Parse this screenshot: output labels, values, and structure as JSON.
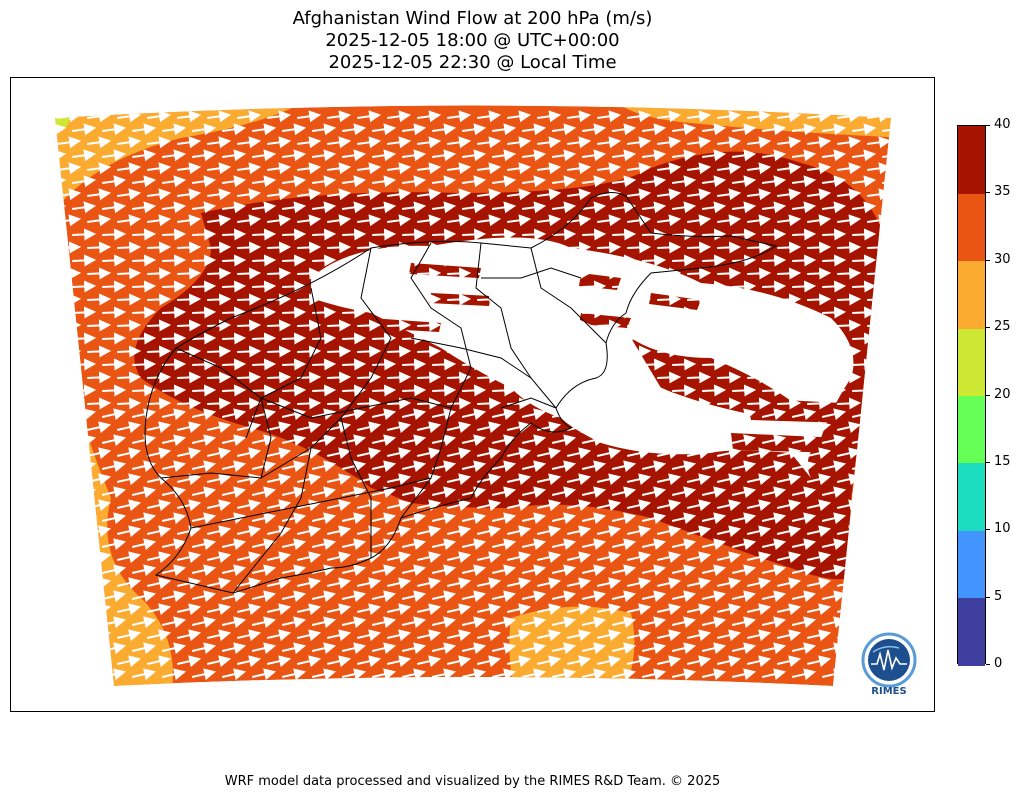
{
  "title": {
    "line1": "Afghanistan Wind Flow at 200 hPa (m/s)",
    "line2": "2025-12-05 18:00 @ UTC+00:00",
    "line3": "2025-12-05 22:30 @ Local Time"
  },
  "colorbar": {
    "ticks": [
      "0",
      "5",
      "10",
      "15",
      "20",
      "25",
      "30",
      "35",
      "40"
    ],
    "colors": [
      "#3f3f9f",
      "#4294ff",
      "#1cdcc0",
      "#66ff55",
      "#cde832",
      "#fcab31",
      "#ea5514",
      "#a61400"
    ]
  },
  "logo": {
    "label": "RIMES",
    "icon": "rimes-globe-logo"
  },
  "footer": "WRF model data processed and visualized by the RIMES R&D Team. © 2025"
}
